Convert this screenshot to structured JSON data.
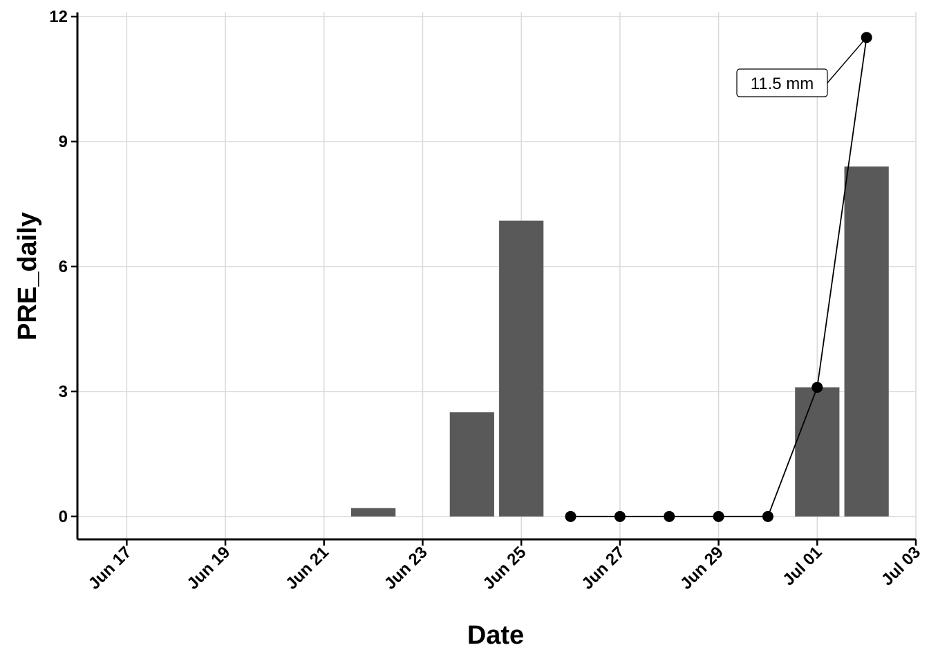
{
  "chart_data": {
    "type": "bar",
    "xlabel": "Date",
    "ylabel": "PRE_daily",
    "x_range": [
      "2024-06-16",
      "2024-07-03"
    ],
    "ylim": [
      -0.55,
      12.1
    ],
    "grid": true,
    "x_ticks": [
      {
        "date": "2024-06-17",
        "label": "Jun 17"
      },
      {
        "date": "2024-06-19",
        "label": "Jun 19"
      },
      {
        "date": "2024-06-21",
        "label": "Jun 21"
      },
      {
        "date": "2024-06-23",
        "label": "Jun 23"
      },
      {
        "date": "2024-06-25",
        "label": "Jun 25"
      },
      {
        "date": "2024-06-27",
        "label": "Jun 27"
      },
      {
        "date": "2024-06-29",
        "label": "Jun 29"
      },
      {
        "date": "2024-07-01",
        "label": "Jul 01"
      },
      {
        "date": "2024-07-03",
        "label": "Jul 03"
      }
    ],
    "y_ticks": [
      0,
      3,
      6,
      9,
      12
    ],
    "bars": [
      {
        "date": "2024-06-22",
        "value": 0.2
      },
      {
        "date": "2024-06-24",
        "value": 2.5
      },
      {
        "date": "2024-06-25",
        "value": 7.1
      },
      {
        "date": "2024-07-01",
        "value": 3.1
      },
      {
        "date": "2024-07-02",
        "value": 8.4
      }
    ],
    "line_points": [
      {
        "date": "2024-06-26",
        "value": 0
      },
      {
        "date": "2024-06-27",
        "value": 0
      },
      {
        "date": "2024-06-28",
        "value": 0
      },
      {
        "date": "2024-06-29",
        "value": 0
      },
      {
        "date": "2024-06-30",
        "value": 0
      },
      {
        "date": "2024-07-01",
        "value": 3.1
      },
      {
        "date": "2024-07-02",
        "value": 11.5
      }
    ],
    "annotation": {
      "text": "11.5 mm",
      "date": "2024-07-02",
      "value": 11.5
    },
    "colors": {
      "bar": "#595959",
      "line": "#000000",
      "grid": "#d9d9d9"
    }
  }
}
